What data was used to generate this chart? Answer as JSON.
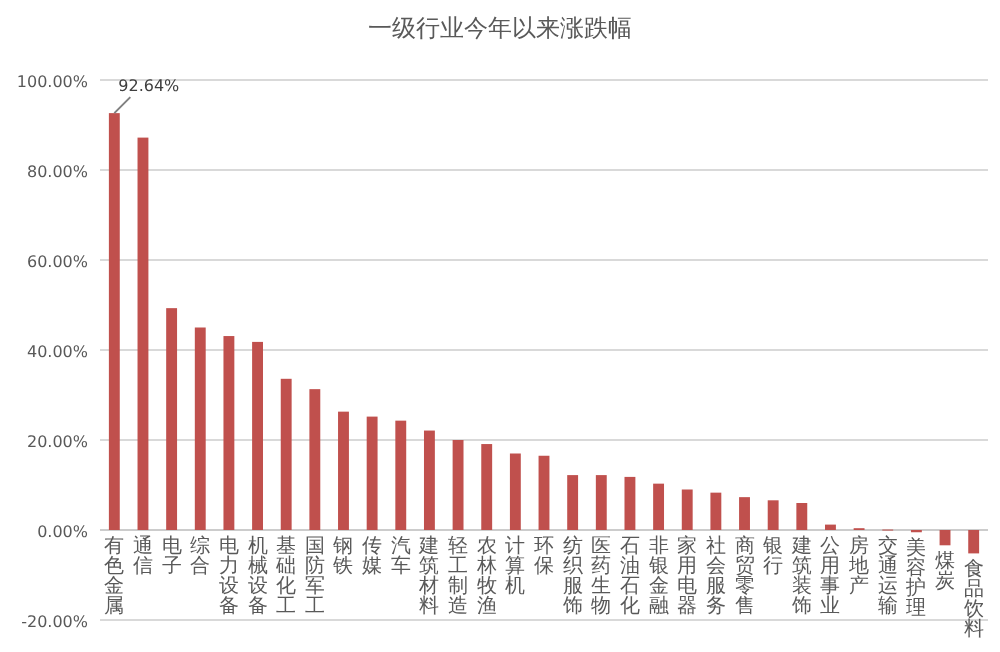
{
  "chart_data": {
    "type": "bar",
    "title": "一级行业今年以来涨跌幅",
    "categories": [
      "有色金属",
      "通信",
      "电子",
      "综合",
      "电力设备",
      "机械设备",
      "基础化工",
      "国防军工",
      "钢铁",
      "传媒",
      "汽车",
      "建筑材料",
      "轻工制造",
      "农林牧渔",
      "计算机",
      "环保",
      "纺织服饰",
      "医药生物",
      "石油石化",
      "非银金融",
      "家用电器",
      "社会服务",
      "商贸零售",
      "银行",
      "建筑装饰",
      "公用事业",
      "房地产",
      "交通运输",
      "美容护理",
      "煤炭",
      "食品饮料"
    ],
    "values": [
      92.64,
      87.2,
      49.3,
      45.0,
      43.1,
      41.8,
      33.6,
      31.3,
      26.3,
      25.2,
      24.3,
      22.1,
      20.0,
      19.1,
      17.0,
      16.5,
      12.2,
      12.2,
      11.8,
      10.3,
      9.0,
      8.3,
      7.3,
      6.6,
      6.0,
      1.2,
      0.4,
      0.1,
      -0.5,
      -3.4,
      -5.2
    ],
    "color": "#c0504d",
    "ylim": [
      -20,
      100
    ],
    "yticks": [
      {
        "value": -20,
        "label": "-20.00%"
      },
      {
        "value": 0,
        "label": "0.00%"
      },
      {
        "value": 20,
        "label": "20.00%"
      },
      {
        "value": 40,
        "label": "40.00%"
      },
      {
        "value": 60,
        "label": "60.00%"
      },
      {
        "value": 80,
        "label": "80.00%"
      },
      {
        "value": 100,
        "label": "100.00%"
      }
    ],
    "grid": "y",
    "annotations": [
      {
        "text": "92.64%",
        "x": "有色金属",
        "y": 92.64
      }
    ]
  }
}
